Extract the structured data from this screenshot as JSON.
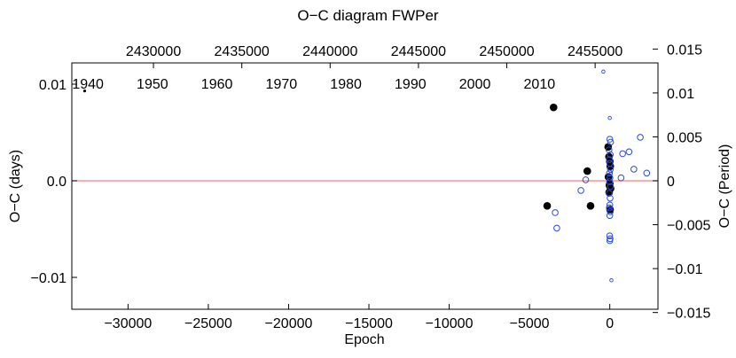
{
  "chart_data": {
    "type": "scatter",
    "title": "O−C diagram FWPer",
    "xlabel": "Epoch",
    "ylabel": "O−C (days)",
    "ylabel_right": "O−C (Period)",
    "xlim": [
      -33500,
      3000
    ],
    "ylim": [
      -0.0133,
      0.0122
    ],
    "x_ticks": [
      -30000,
      -25000,
      -20000,
      -15000,
      -10000,
      -5000,
      0
    ],
    "x_tick_labels": [
      "−30000",
      "−25000",
      "−20000",
      "−15000",
      "−10000",
      "−5000",
      "0"
    ],
    "y_ticks": [
      -0.01,
      0.0,
      0.01
    ],
    "y_tick_labels": [
      "−0.01",
      "0.0",
      "0.01"
    ],
    "right_axis": {
      "unit_per_day": 1.1,
      "ticks": [
        -0.015,
        -0.01,
        -0.005,
        0,
        0.005,
        0.01,
        0.015
      ],
      "tick_labels": [
        "−0.015",
        "−0.01",
        "−0.005",
        "0",
        "0.005",
        "0.01",
        "0.015"
      ]
    },
    "top_axis_jd": {
      "epoch_zero_jd": 2455830,
      "days_per_epoch": 0.909,
      "ticks": [
        2430000,
        2435000,
        2440000,
        2445000,
        2450000,
        2455000
      ],
      "tick_labels": [
        "2430000",
        "2435000",
        "2440000",
        "2445000",
        "2450000",
        "2455000"
      ]
    },
    "year_labels": {
      "epoch_1940": -32500,
      "epoch_per_year": 401.7,
      "ticks": [
        1940,
        1950,
        1960,
        1970,
        1980,
        1990,
        2000,
        2010
      ],
      "tick_labels": [
        "1940",
        "1950",
        "1960",
        "1970",
        "1980",
        "1990",
        "2000",
        "2010"
      ]
    },
    "zero_line": {
      "y": 0,
      "color": "#f08080"
    },
    "series": [
      {
        "style": "filled-small",
        "color": "#000000",
        "points": [
          [
            -32700,
            0.0093
          ]
        ]
      },
      {
        "style": "filled-large",
        "color": "#000000",
        "points": [
          [
            -3500,
            0.0076
          ],
          [
            -3900,
            -0.0026
          ],
          [
            -1400,
            0.001
          ],
          [
            -1200,
            -0.0026
          ],
          [
            -100,
            0.0035
          ],
          [
            -50,
            0.0025
          ],
          [
            0,
            0.002
          ],
          [
            30,
            0.0015
          ],
          [
            -80,
            0.0004
          ],
          [
            0,
            -0.0003
          ],
          [
            50,
            -0.0008
          ],
          [
            -40,
            -0.0012
          ],
          [
            20,
            -0.003
          ],
          [
            -20,
            -0.0005
          ]
        ]
      },
      {
        "style": "open-circle",
        "color": "#2a4bd7",
        "points": [
          [
            -3400,
            -0.0033
          ],
          [
            -3300,
            -0.0049
          ],
          [
            -1800,
            -0.001
          ],
          [
            -1500,
            0.0001
          ],
          [
            0,
            0.0043
          ],
          [
            50,
            0.004
          ],
          [
            -50,
            0.0032
          ],
          [
            30,
            0.0027
          ],
          [
            -30,
            0.0022
          ],
          [
            0,
            0.0018
          ],
          [
            40,
            0.0012
          ],
          [
            -20,
            0.0008
          ],
          [
            10,
            0.0003
          ],
          [
            -10,
            -0.0001
          ],
          [
            40,
            -0.0006
          ],
          [
            -40,
            -0.0013
          ],
          [
            20,
            -0.0018
          ],
          [
            0,
            -0.0025
          ],
          [
            -30,
            -0.0028
          ],
          [
            30,
            -0.0032
          ],
          [
            0,
            -0.0036
          ],
          [
            -10,
            -0.0057
          ],
          [
            20,
            -0.006
          ],
          [
            0,
            -0.0062
          ],
          [
            700,
            0.0003
          ],
          [
            800,
            0.0028
          ],
          [
            1200,
            0.003
          ],
          [
            1500,
            0.0012
          ],
          [
            1900,
            0.0045
          ],
          [
            2300,
            0.0008
          ]
        ]
      },
      {
        "style": "open-circle-small",
        "color": "#2a4bd7",
        "points": [
          [
            -400,
            0.0113
          ],
          [
            0,
            0.0065
          ],
          [
            100,
            -0.0103
          ],
          [
            50,
            0.0007
          ]
        ]
      }
    ]
  }
}
